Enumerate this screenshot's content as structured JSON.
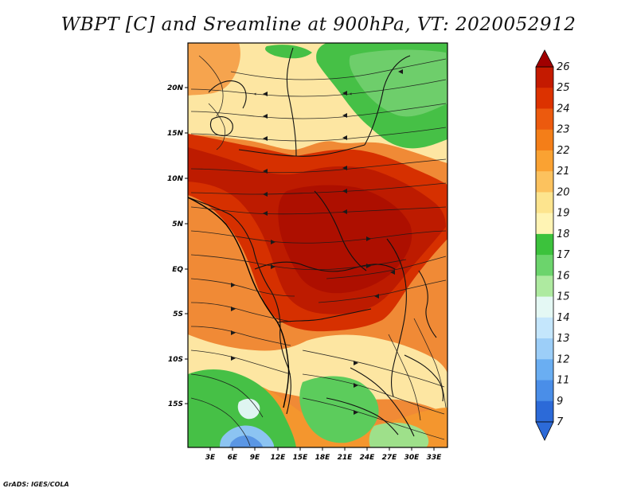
{
  "title": "WBPT [C] and Sreamline at 900hPa, VT: 2020052912",
  "credit": "GrADS: IGES/COLA",
  "map": {
    "lat_ticks": [
      "20N",
      "15N",
      "10N",
      "5N",
      "EQ",
      "5S",
      "10S",
      "15S"
    ],
    "lon_ticks": [
      "3E",
      "6E",
      "9E",
      "12E",
      "15E",
      "18E",
      "21E",
      "24E",
      "27E",
      "30E",
      "33E"
    ]
  },
  "colorbar": {
    "levels": [
      "26",
      "25",
      "24",
      "23",
      "22",
      "21",
      "20",
      "19",
      "18",
      "17",
      "16",
      "15",
      "14",
      "13",
      "12",
      "11",
      "9",
      "7"
    ],
    "colors": [
      "#a00000",
      "#c41a00",
      "#dc3200",
      "#ec5a0e",
      "#f47e18",
      "#faa232",
      "#fcc25e",
      "#fde48e",
      "#fff4b4",
      "#3cc23c",
      "#6cd46c",
      "#aeeaa0",
      "#e4f8f4",
      "#c4e6fc",
      "#9ccef8",
      "#6aaef2",
      "#4a8ee8",
      "#2c6ad8"
    ]
  },
  "fields": {
    "ocean_color": "#f08a36",
    "hot_core_color": "#c01c00",
    "dry_north_color": "#fde6a2",
    "green_color": "#4cc84c",
    "cool_southwest_color": "#7ab8ee"
  }
}
